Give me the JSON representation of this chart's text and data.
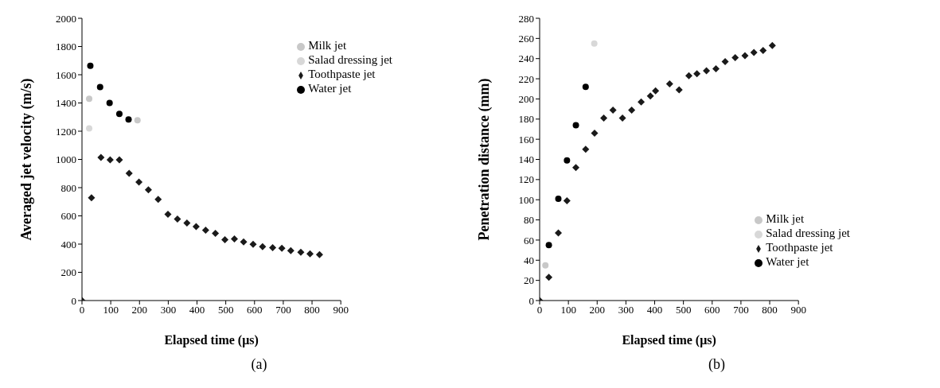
{
  "chart_data": [
    {
      "type": "scatter",
      "xlabel": "Elapsed time (μs)",
      "ylabel": "Averaged jet velocity (m/s)",
      "annotations": [
        "(a)"
      ],
      "xlim": [
        0,
        900
      ],
      "xticks": [
        0,
        100,
        200,
        300,
        400,
        500,
        600,
        700,
        800,
        900
      ],
      "ylim": [
        0,
        2000
      ],
      "yticks": [
        0,
        200,
        400,
        600,
        800,
        1000,
        1200,
        1400,
        1600,
        1800,
        2000
      ],
      "legend": "top right",
      "series": [
        {
          "name": "Water jet",
          "color": "#000000",
          "marker": "circle",
          "x": [
            29,
            63,
            96,
            130,
            162
          ],
          "values": [
            1664,
            1513,
            1400,
            1322,
            1283
          ]
        },
        {
          "name": "Milk jet",
          "color": "#c8c8c8",
          "marker": "circle",
          "x": [
            25,
            193
          ],
          "values": [
            1430,
            1277
          ]
        },
        {
          "name": "Salad dressing jet",
          "color": "#d8d8d8",
          "marker": "circle",
          "x": [
            25
          ],
          "values": [
            1220
          ]
        },
        {
          "name": "Toothpaste jet",
          "color": "#1a1a1a",
          "marker": "diamond",
          "x": [
            0,
            33,
            66,
            98,
            130,
            164,
            198,
            231,
            265,
            299,
            332,
            365,
            397,
            430,
            464,
            497,
            530,
            562,
            595,
            628,
            663,
            695,
            726,
            761,
            793,
            826
          ],
          "values": [
            0,
            728,
            1014,
            997,
            997,
            902,
            840,
            784,
            717,
            611,
            577,
            549,
            524,
            498,
            476,
            431,
            437,
            415,
            398,
            381,
            375,
            370,
            353,
            342,
            331,
            325
          ]
        }
      ]
    },
    {
      "type": "scatter",
      "xlabel": "Elapsed time (μs)",
      "ylabel": "Penetration distance (mm)",
      "annotations": [
        "(b)"
      ],
      "xlim": [
        0,
        900
      ],
      "xticks": [
        0,
        100,
        200,
        300,
        400,
        500,
        600,
        700,
        800,
        900
      ],
      "ylim": [
        0,
        280
      ],
      "yticks": [
        0,
        20,
        40,
        60,
        80,
        100,
        120,
        140,
        160,
        180,
        200,
        220,
        240,
        260,
        280
      ],
      "legend": "bottom right",
      "series": [
        {
          "name": "Water jet",
          "color": "#000000",
          "marker": "circle",
          "x": [
            32,
            65,
            95,
            126,
            160
          ],
          "values": [
            55,
            101,
            139,
            174,
            212
          ]
        },
        {
          "name": "Milk jet",
          "color": "#c8c8c8",
          "marker": "circle",
          "x": [
            20
          ],
          "values": [
            35
          ]
        },
        {
          "name": "Salad dressing jet",
          "color": "#d8d8d8",
          "marker": "circle",
          "x": [
            190
          ],
          "values": [
            255
          ]
        },
        {
          "name": "Toothpaste jet",
          "color": "#1a1a1a",
          "marker": "diamond",
          "x": [
            0,
            32,
            65,
            95,
            126,
            160,
            191,
            223,
            255,
            288,
            320,
            353,
            385,
            403,
            452,
            485,
            519,
            547,
            580,
            613,
            645,
            680,
            714,
            745,
            777,
            809
          ],
          "values": [
            0,
            23,
            67,
            99,
            132,
            150,
            166,
            181,
            189,
            181,
            189,
            197,
            203,
            208,
            215,
            209,
            223,
            225,
            228,
            230,
            237,
            241,
            243,
            246,
            248,
            253
          ]
        }
      ]
    }
  ]
}
